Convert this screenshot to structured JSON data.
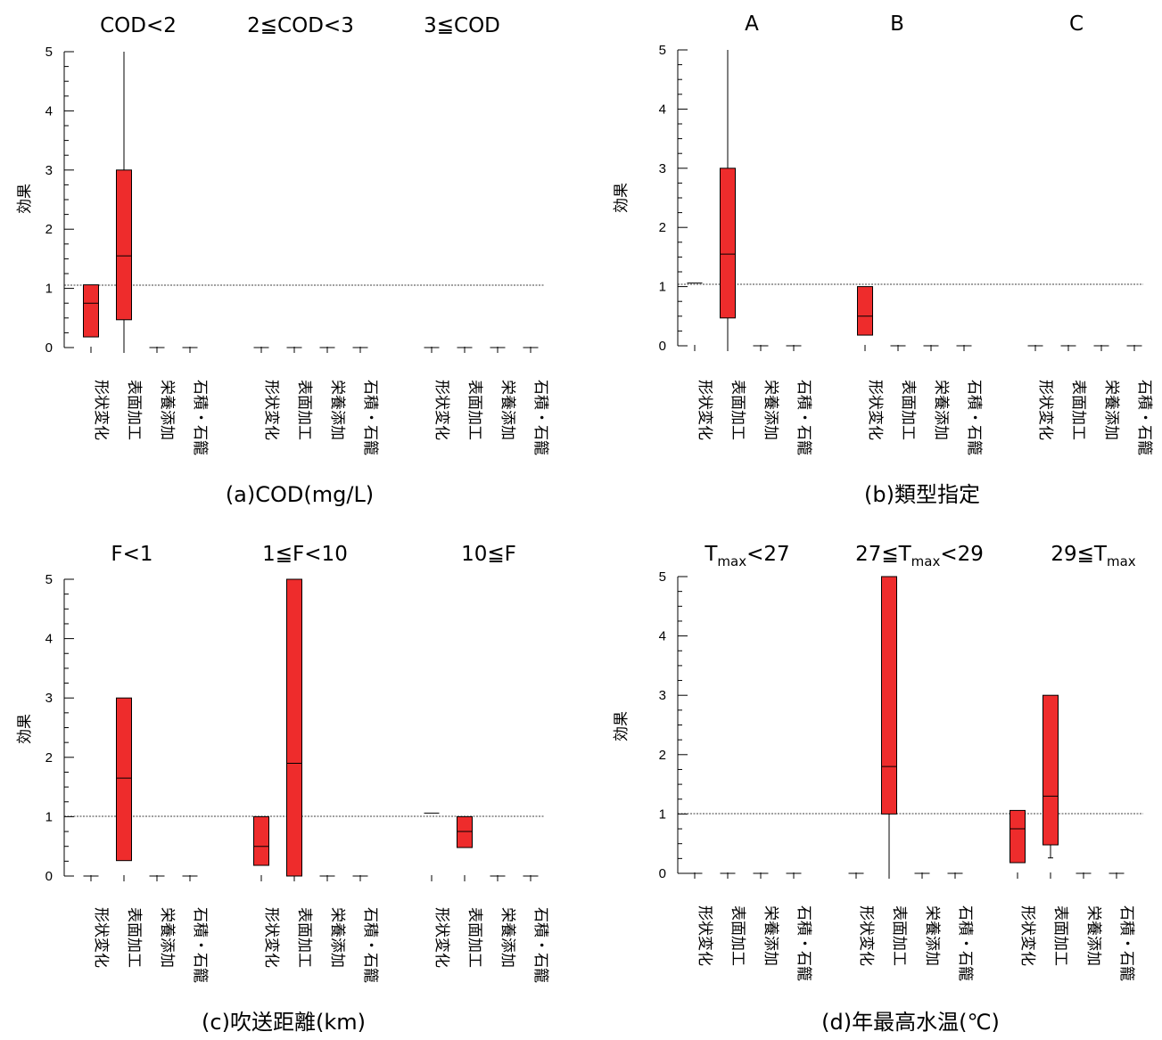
{
  "chart_data": [
    {
      "type": "box",
      "ylabel": "効果",
      "ylim": [
        0,
        5
      ],
      "yticks": [
        "0",
        "1",
        "2",
        "3",
        "4",
        "5"
      ],
      "reference_line": 1.05,
      "xlabel": "(a)COD(mg/L)",
      "categories": [
        "形状変化",
        "表面加工",
        "栄養添加",
        "石積・石籠"
      ],
      "groups": [
        {
          "title": "COD<2",
          "boxes": [
            {
              "q1": 0.18,
              "median": 0.75,
              "q3": 1.06,
              "min": 0.18,
              "max": 1.06
            },
            {
              "q1": 0.47,
              "median": 1.55,
              "q3": 3.0,
              "min": 0,
              "max": 5.0
            },
            {
              "q1": 0,
              "median": 0,
              "q3": 0,
              "min": 0,
              "max": 0
            },
            {
              "q1": 0,
              "median": 0,
              "q3": 0,
              "min": 0,
              "max": 0
            }
          ]
        },
        {
          "title": "2≦COD<3",
          "boxes": [
            {
              "q1": 0,
              "median": 0,
              "q3": 0,
              "min": 0,
              "max": 0
            },
            {
              "q1": 0,
              "median": 0,
              "q3": 0,
              "min": 0,
              "max": 0
            },
            {
              "q1": 0,
              "median": 0,
              "q3": 0,
              "min": 0,
              "max": 0
            },
            {
              "q1": 0,
              "median": 0,
              "q3": 0,
              "min": 0,
              "max": 0
            }
          ]
        },
        {
          "title": "3≦COD",
          "boxes": [
            {
              "q1": 0,
              "median": 0,
              "q3": 0,
              "min": 0,
              "max": 0
            },
            {
              "q1": 0,
              "median": 0,
              "q3": 0,
              "min": 0,
              "max": 0
            },
            {
              "q1": 0,
              "median": 0,
              "q3": 0,
              "min": 0,
              "max": 0
            },
            {
              "q1": 0,
              "median": 0,
              "q3": 0,
              "min": 0,
              "max": 0
            }
          ]
        }
      ]
    },
    {
      "type": "box",
      "ylabel": "効果",
      "ylim": [
        0,
        5
      ],
      "yticks": [
        "0",
        "1",
        "2",
        "3",
        "4",
        "5"
      ],
      "reference_line": 1.05,
      "xlabel": "(b)類型指定",
      "categories": [
        "形状変化",
        "表面加工",
        "栄養添加",
        "石積・石籠"
      ],
      "groups": [
        {
          "title": "A",
          "boxes": [
            {
              "q1": 1.06,
              "median": 1.06,
              "q3": 1.06,
              "min": 1.06,
              "max": 1.06
            },
            {
              "q1": 0.47,
              "median": 1.55,
              "q3": 3.0,
              "min": 0,
              "max": 5.0
            },
            {
              "q1": 0,
              "median": 0,
              "q3": 0,
              "min": 0,
              "max": 0
            },
            {
              "q1": 0,
              "median": 0,
              "q3": 0,
              "min": 0,
              "max": 0
            }
          ]
        },
        {
          "title": "B",
          "boxes": [
            {
              "q1": 0.18,
              "median": 0.5,
              "q3": 1.0,
              "min": 0.18,
              "max": 1.0
            },
            {
              "q1": 0,
              "median": 0,
              "q3": 0,
              "min": 0,
              "max": 0
            },
            {
              "q1": 0,
              "median": 0,
              "q3": 0,
              "min": 0,
              "max": 0
            },
            {
              "q1": 0,
              "median": 0,
              "q3": 0,
              "min": 0,
              "max": 0
            }
          ]
        },
        {
          "title": "C",
          "boxes": [
            {
              "q1": 0,
              "median": 0,
              "q3": 0,
              "min": 0,
              "max": 0
            },
            {
              "q1": 0,
              "median": 0,
              "q3": 0,
              "min": 0,
              "max": 0
            },
            {
              "q1": 0,
              "median": 0,
              "q3": 0,
              "min": 0,
              "max": 0
            },
            {
              "q1": 0,
              "median": 0,
              "q3": 0,
              "min": 0,
              "max": 0
            }
          ]
        }
      ]
    },
    {
      "type": "box",
      "ylabel": "効果",
      "ylim": [
        0,
        5
      ],
      "yticks": [
        "0",
        "1",
        "2",
        "3",
        "4",
        "5"
      ],
      "reference_line": 1.0,
      "xlabel": "(c)吹送距離(km)",
      "categories": [
        "形状変化",
        "表面加工",
        "栄養添加",
        "石積・石籠"
      ],
      "groups": [
        {
          "title": "F<1",
          "boxes": [
            {
              "q1": 0,
              "median": 0,
              "q3": 0,
              "min": 0,
              "max": 0
            },
            {
              "q1": 0.26,
              "median": 1.65,
              "q3": 3.0,
              "min": 0.26,
              "max": 3.0
            },
            {
              "q1": 0,
              "median": 0,
              "q3": 0,
              "min": 0,
              "max": 0
            },
            {
              "q1": 0,
              "median": 0,
              "q3": 0,
              "min": 0,
              "max": 0
            }
          ]
        },
        {
          "title": "1≦F<10",
          "boxes": [
            {
              "q1": 0.18,
              "median": 0.5,
              "q3": 1.0,
              "min": 0.18,
              "max": 1.0
            },
            {
              "q1": 0,
              "median": 1.9,
              "q3": 5.0,
              "min": 0,
              "max": 5.0
            },
            {
              "q1": 0,
              "median": 0,
              "q3": 0,
              "min": 0,
              "max": 0
            },
            {
              "q1": 0,
              "median": 0,
              "q3": 0,
              "min": 0,
              "max": 0
            }
          ]
        },
        {
          "title": "10≦F",
          "boxes": [
            {
              "q1": 1.06,
              "median": 1.06,
              "q3": 1.06,
              "min": 1.06,
              "max": 1.06
            },
            {
              "q1": 0.48,
              "median": 0.75,
              "q3": 1.0,
              "min": 0.48,
              "max": 1.0
            },
            {
              "q1": 0,
              "median": 0,
              "q3": 0,
              "min": 0,
              "max": 0
            },
            {
              "q1": 0,
              "median": 0,
              "q3": 0,
              "min": 0,
              "max": 0
            }
          ]
        }
      ]
    },
    {
      "type": "box",
      "ylabel": "効果",
      "ylim": [
        0,
        5
      ],
      "yticks": [
        "0",
        "1",
        "2",
        "3",
        "4",
        "5"
      ],
      "reference_line": 1.0,
      "xlabel": "(d)年最高水温(℃)",
      "categories": [
        "形状変化",
        "表面加工",
        "栄養添加",
        "石積・石籠"
      ],
      "groups": [
        {
          "title": "Tmax<27",
          "title_base": "T",
          "title_sub": "max",
          "title_pre": "",
          "title_post": "<27",
          "boxes": [
            {
              "q1": 0,
              "median": 0,
              "q3": 0,
              "min": 0,
              "max": 0
            },
            {
              "q1": 0,
              "median": 0,
              "q3": 0,
              "min": 0,
              "max": 0
            },
            {
              "q1": 0,
              "median": 0,
              "q3": 0,
              "min": 0,
              "max": 0
            },
            {
              "q1": 0,
              "median": 0,
              "q3": 0,
              "min": 0,
              "max": 0
            }
          ]
        },
        {
          "title": "27≦Tmax<29",
          "title_base": "T",
          "title_sub": "max",
          "title_pre": "27≦",
          "title_post": "<29",
          "boxes": [
            {
              "q1": 0,
              "median": 0,
              "q3": 0,
              "min": 0,
              "max": 0
            },
            {
              "q1": 1.0,
              "median": 1.8,
              "q3": 5.0,
              "min": 0,
              "max": 5.0
            },
            {
              "q1": 0,
              "median": 0,
              "q3": 0,
              "min": 0,
              "max": 0
            },
            {
              "q1": 0,
              "median": 0,
              "q3": 0,
              "min": 0,
              "max": 0
            }
          ]
        },
        {
          "title": "29≦Tmax",
          "title_base": "T",
          "title_sub": "max",
          "title_pre": "29≦",
          "title_post": "",
          "boxes": [
            {
              "q1": 0.18,
              "median": 0.75,
              "q3": 1.06,
              "min": 0.18,
              "max": 1.06
            },
            {
              "q1": 0.48,
              "median": 1.3,
              "q3": 3.0,
              "min": 0.26,
              "max": 3.0
            },
            {
              "q1": 0,
              "median": 0,
              "q3": 0,
              "min": 0,
              "max": 0
            },
            {
              "q1": 0,
              "median": 0,
              "q3": 0,
              "min": 0,
              "max": 0
            }
          ]
        }
      ]
    }
  ],
  "colors": {
    "box_fill": "#ee2c2c",
    "box_stroke": "#000000"
  }
}
